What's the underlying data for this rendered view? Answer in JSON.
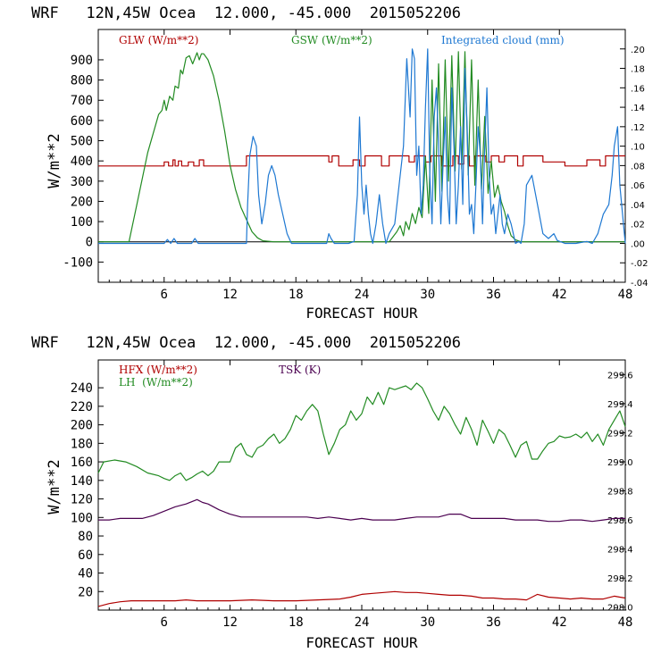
{
  "chart_data": [
    {
      "type": "line",
      "header": "WRF   12N,45W Ocea  12.000, -45.000  2015052206",
      "xlabel": "FORECAST HOUR",
      "ylabel": "W/m**2",
      "xlim": [
        0,
        48
      ],
      "ylim": [
        -200,
        1050
      ],
      "y2lim": [
        -0.04,
        0.22
      ],
      "x_ticks": [
        6,
        12,
        18,
        24,
        30,
        36,
        42,
        48
      ],
      "y_ticks": [
        -100,
        0,
        100,
        200,
        300,
        400,
        500,
        600,
        700,
        800,
        900
      ],
      "y_tick_labels": [
        "-100",
        "0",
        "100",
        "200",
        "300",
        "400",
        "500",
        "600",
        "700",
        "800",
        "900"
      ],
      "y2_ticks": [
        -0.04,
        -0.02,
        0,
        0.02,
        0.04,
        0.06,
        0.08,
        0.1,
        0.12,
        0.14,
        0.16,
        0.18,
        0.2
      ],
      "y2_tick_labels": [
        "-.04",
        "-.02",
        ".00",
        ".02",
        ".04",
        ".06",
        ".08",
        ".10",
        ".12",
        ".14",
        ".16",
        ".18",
        ".20"
      ],
      "legend": [
        {
          "label": "GLW (W/m**2)",
          "color": "#b00000"
        },
        {
          "label": "GSW (W/m**2)",
          "color": "#228b22"
        },
        {
          "label": "Integrated cloud (mm)",
          "color": "#1e78d2"
        }
      ],
      "series": [
        {
          "name": "GLW (W/m**2)",
          "color": "#b00000",
          "axis": "left",
          "x": [
            0,
            6.0,
            6.0,
            6.4,
            6.4,
            6.8,
            6.8,
            7.0,
            7.0,
            7.3,
            7.3,
            7.6,
            7.6,
            8.2,
            8.2,
            8.7,
            8.7,
            9.2,
            9.2,
            9.6,
            9.6,
            13.5,
            13.5,
            21.0,
            21.0,
            21.3,
            21.3,
            21.9,
            21.9,
            23.2,
            23.2,
            23.8,
            23.8,
            24.3,
            24.3,
            25.8,
            25.8,
            26.5,
            26.5,
            28.3,
            28.3,
            28.8,
            28.8,
            29.8,
            29.8,
            30.3,
            30.3,
            31.3,
            31.3,
            32.3,
            32.3,
            32.8,
            32.8,
            33.3,
            33.3,
            33.8,
            33.8,
            34.3,
            34.3,
            35.3,
            35.3,
            35.8,
            35.8,
            36.5,
            36.5,
            37.0,
            37.0,
            38.2,
            38.2,
            38.7,
            38.7,
            40.5,
            40.5,
            42.5,
            42.5,
            44.5,
            44.5,
            45.7,
            45.7,
            46.2,
            46.2,
            48
          ],
          "y": [
            375,
            375,
            395,
            395,
            375,
            375,
            405,
            405,
            375,
            375,
            400,
            400,
            375,
            375,
            395,
            395,
            375,
            375,
            405,
            405,
            375,
            375,
            425,
            425,
            395,
            395,
            425,
            425,
            375,
            375,
            405,
            405,
            375,
            375,
            425,
            425,
            375,
            375,
            425,
            425,
            395,
            395,
            425,
            425,
            395,
            395,
            425,
            425,
            375,
            375,
            425,
            425,
            385,
            385,
            425,
            425,
            375,
            375,
            425,
            425,
            395,
            395,
            425,
            425,
            395,
            395,
            425,
            425,
            375,
            375,
            425,
            425,
            395,
            395,
            375,
            375,
            405,
            405,
            375,
            375,
            425,
            425
          ]
        },
        {
          "name": "GSW (W/m**2)",
          "color": "#228b22",
          "axis": "left",
          "x": [
            0,
            2.8,
            3.5,
            4.5,
            5.5,
            5.8,
            6.0,
            6.2,
            6.5,
            6.8,
            7.0,
            7.3,
            7.5,
            7.7,
            8.0,
            8.3,
            8.6,
            9.0,
            9.2,
            9.4,
            9.6,
            10.0,
            10.5,
            11.0,
            11.5,
            12.0,
            12.5,
            13.0,
            13.5,
            14.0,
            14.5,
            15.0,
            16.0,
            26.5,
            27.2,
            27.5,
            27.8,
            28.0,
            28.3,
            28.6,
            28.9,
            29.2,
            29.5,
            29.8,
            30.1,
            30.4,
            30.7,
            31.0,
            31.3,
            31.6,
            31.9,
            32.2,
            32.5,
            32.8,
            33.1,
            33.4,
            33.7,
            34.0,
            34.3,
            34.6,
            34.9,
            35.2,
            35.5,
            35.8,
            36.1,
            36.4,
            36.7,
            37.0,
            37.3,
            37.6,
            38.0,
            38.5,
            48
          ],
          "y": [
            0,
            0,
            180,
            440,
            630,
            650,
            700,
            650,
            720,
            700,
            770,
            760,
            850,
            830,
            910,
            920,
            880,
            935,
            900,
            930,
            930,
            900,
            820,
            700,
            550,
            380,
            260,
            170,
            110,
            50,
            20,
            5,
            0,
            0,
            50,
            80,
            30,
            100,
            60,
            140,
            90,
            170,
            120,
            420,
            140,
            800,
            200,
            880,
            250,
            900,
            300,
            920,
            350,
            940,
            360,
            940,
            330,
            900,
            280,
            800,
            260,
            620,
            240,
            400,
            220,
            280,
            200,
            150,
            80,
            30,
            10,
            0,
            0
          ]
        },
        {
          "name": "Integrated cloud (mm)",
          "color": "#1e78d2",
          "axis": "right",
          "x": [
            0,
            6.0,
            6.3,
            6.6,
            6.9,
            7.2,
            7.5,
            8.5,
            8.8,
            9.1,
            13.5,
            13.6,
            13.8,
            14.1,
            14.4,
            14.6,
            14.9,
            15.2,
            15.5,
            15.8,
            16.1,
            16.4,
            16.8,
            17.2,
            17.6,
            18.0,
            20.8,
            21.0,
            21.2,
            21.5,
            22.8,
            23.3,
            23.6,
            23.8,
            24.0,
            24.2,
            24.4,
            24.6,
            24.8,
            25.0,
            25.3,
            25.6,
            25.9,
            26.2,
            26.5,
            27.0,
            27.4,
            27.8,
            28.1,
            28.4,
            28.6,
            28.8,
            29.0,
            29.2,
            29.4,
            29.6,
            29.8,
            30.0,
            30.2,
            30.4,
            30.6,
            30.8,
            31.0,
            31.2,
            31.4,
            31.6,
            31.8,
            32.0,
            32.2,
            32.4,
            32.6,
            32.8,
            33.0,
            33.2,
            33.4,
            33.6,
            33.8,
            34.0,
            34.2,
            34.4,
            34.6,
            34.8,
            35.0,
            35.2,
            35.4,
            35.6,
            35.8,
            36.0,
            36.2,
            36.4,
            36.6,
            36.8,
            37.0,
            37.3,
            37.6,
            38.0,
            38.3,
            38.5,
            38.8,
            39.0,
            39.5,
            40.0,
            40.5,
            41.0,
            41.5,
            41.8,
            42.5,
            43.5,
            44.5,
            45.0,
            45.5,
            46.0,
            46.5,
            46.8,
            47.0,
            47.3,
            47.5,
            48
          ],
          "y": [
            0,
            0,
            0.004,
            0,
            0.005,
            0,
            0,
            0,
            0.005,
            0,
            0,
            0.04,
            0.09,
            0.11,
            0.1,
            0.05,
            0.02,
            0.04,
            0.07,
            0.08,
            0.07,
            0.05,
            0.03,
            0.01,
            0,
            0,
            0,
            0.01,
            0.005,
            0,
            0,
            0.002,
            0.05,
            0.13,
            0.06,
            0.03,
            0.06,
            0.03,
            0.01,
            0,
            0.02,
            0.05,
            0.02,
            0,
            0.01,
            0.02,
            0.06,
            0.1,
            0.19,
            0.13,
            0.2,
            0.19,
            0.07,
            0.1,
            0.03,
            0.06,
            0.14,
            0.2,
            0.07,
            0.02,
            0.13,
            0.16,
            0.1,
            0.02,
            0.08,
            0.13,
            0.05,
            0.02,
            0.16,
            0.1,
            0.02,
            0.06,
            0.12,
            0.04,
            0.18,
            0.12,
            0.03,
            0.04,
            0.01,
            0.06,
            0.12,
            0.09,
            0.02,
            0.1,
            0.16,
            0.07,
            0.03,
            0.04,
            0.01,
            0.03,
            0.05,
            0.02,
            0.01,
            0.03,
            0.02,
            0,
            0.002,
            0,
            0.02,
            0.06,
            0.07,
            0.04,
            0.01,
            0.005,
            0.01,
            0.003,
            0,
            0,
            0.002,
            0,
            0.01,
            0.03,
            0.04,
            0.07,
            0.1,
            0.12,
            0.06,
            0
          ]
        }
      ]
    },
    {
      "type": "line",
      "header": "WRF   12N,45W Ocea  12.000, -45.000  2015052206",
      "xlabel": "FORECAST HOUR",
      "ylabel": "W/m**2",
      "xlim": [
        0,
        48
      ],
      "ylim": [
        0,
        270
      ],
      "y2lim": [
        297.98,
        299.7
      ],
      "x_ticks": [
        6,
        12,
        18,
        24,
        30,
        36,
        42,
        48
      ],
      "y_ticks": [
        20,
        40,
        60,
        80,
        100,
        120,
        140,
        160,
        180,
        200,
        220,
        240
      ],
      "y_tick_labels": [
        "20",
        "40",
        "60",
        "80",
        "100",
        "120",
        "140",
        "160",
        "180",
        "200",
        "220",
        "240"
      ],
      "y2_ticks": [
        298.0,
        298.2,
        298.4,
        298.6,
        298.8,
        299.0,
        299.2,
        299.4,
        299.6
      ],
      "y2_tick_labels": [
        "298.0",
        "298.2",
        "298.4",
        "298.6",
        "298.8",
        "299.0",
        "299.2",
        "299.4",
        "299.6"
      ],
      "legend": [
        {
          "label": "HFX (W/m**2)",
          "color": "#b00000"
        },
        {
          "label": "LH  (W/m**2)",
          "color": "#228b22"
        },
        {
          "label": "TSK (K)",
          "color": "#4b0050"
        }
      ],
      "series": [
        {
          "name": "HFX (W/m**2)",
          "color": "#b00000",
          "axis": "left",
          "x": [
            0,
            1,
            2,
            3,
            4,
            5,
            6,
            7,
            8,
            9,
            10,
            12,
            14,
            16,
            18,
            20,
            22,
            23,
            24,
            25,
            26,
            27,
            28,
            29,
            30,
            31,
            32,
            33,
            34,
            35,
            36,
            37,
            38,
            39,
            40,
            41,
            42,
            43,
            44,
            45,
            46,
            47,
            47.5,
            48
          ],
          "y": [
            4,
            7,
            9,
            10,
            10,
            10,
            10,
            10,
            11,
            10,
            10,
            10,
            11,
            10,
            10,
            11,
            12,
            14,
            17,
            18,
            19,
            20,
            19,
            19,
            18,
            17,
            16,
            16,
            15,
            13,
            13,
            12,
            12,
            11,
            17,
            14,
            13,
            12,
            13,
            12,
            12,
            15,
            14,
            13
          ]
        },
        {
          "name": "LH  (W/m**2)",
          "color": "#228b22",
          "axis": "left",
          "x": [
            0,
            0.5,
            1.5,
            2.5,
            3.5,
            4.5,
            5.5,
            6.0,
            6.5,
            7.0,
            7.5,
            8.0,
            8.5,
            9.0,
            9.5,
            10.0,
            10.5,
            11.0,
            12.0,
            12.5,
            13.0,
            13.5,
            14.0,
            14.5,
            15.0,
            15.5,
            16.0,
            16.5,
            17.0,
            17.5,
            18.0,
            18.5,
            19.0,
            19.5,
            20.0,
            20.5,
            21.0,
            21.5,
            22.0,
            22.5,
            23.0,
            23.5,
            24.0,
            24.5,
            25.0,
            25.5,
            26.0,
            26.5,
            27.0,
            27.5,
            28.0,
            28.5,
            29.0,
            29.5,
            30.0,
            30.5,
            31.0,
            31.5,
            32.0,
            32.5,
            33.0,
            33.5,
            34.0,
            34.5,
            35.0,
            35.5,
            36.0,
            36.5,
            37.0,
            37.5,
            38.0,
            38.5,
            39.0,
            39.5,
            40.0,
            40.5,
            41.0,
            41.5,
            42.0,
            42.5,
            43.0,
            43.5,
            44.0,
            44.5,
            45.0,
            45.5,
            46.0,
            46.5,
            47.0,
            47.5,
            48.0
          ],
          "y": [
            148,
            160,
            162,
            160,
            155,
            148,
            145,
            142,
            140,
            145,
            148,
            140,
            143,
            147,
            150,
            145,
            150,
            160,
            160,
            175,
            180,
            168,
            165,
            175,
            178,
            185,
            190,
            180,
            185,
            195,
            210,
            205,
            215,
            222,
            215,
            190,
            168,
            180,
            195,
            200,
            215,
            205,
            212,
            230,
            222,
            235,
            222,
            240,
            238,
            240,
            242,
            238,
            245,
            240,
            228,
            215,
            205,
            220,
            212,
            200,
            190,
            208,
            195,
            178,
            205,
            193,
            180,
            195,
            190,
            178,
            165,
            178,
            182,
            163,
            163,
            172,
            180,
            182,
            188,
            186,
            187,
            190,
            186,
            192,
            182,
            190,
            178,
            195,
            205,
            215,
            198
          ]
        },
        {
          "name": "TSK (K)",
          "color": "#4b0050",
          "axis": "right",
          "x": [
            0,
            1,
            2,
            3,
            4,
            5,
            6,
            7,
            8,
            9,
            9.5,
            10,
            11,
            12,
            13,
            14,
            15,
            16,
            17,
            18,
            19,
            20,
            21,
            22,
            23,
            24,
            25,
            26,
            27,
            28,
            29,
            30,
            31,
            32,
            33,
            34,
            35,
            36,
            37,
            38,
            39,
            40,
            41,
            42,
            43,
            44,
            45,
            46,
            47,
            48
          ],
          "y": [
            298.6,
            298.6,
            298.61,
            298.61,
            298.61,
            298.63,
            298.66,
            298.69,
            298.71,
            298.74,
            298.72,
            298.71,
            298.67,
            298.64,
            298.62,
            298.62,
            298.62,
            298.62,
            298.62,
            298.62,
            298.62,
            298.61,
            298.62,
            298.61,
            298.6,
            298.61,
            298.6,
            298.6,
            298.6,
            298.61,
            298.62,
            298.62,
            298.62,
            298.64,
            298.64,
            298.61,
            298.61,
            298.61,
            298.61,
            298.6,
            298.6,
            298.6,
            298.59,
            298.59,
            298.6,
            298.6,
            298.59,
            298.6,
            298.61,
            298.61
          ]
        }
      ]
    }
  ]
}
